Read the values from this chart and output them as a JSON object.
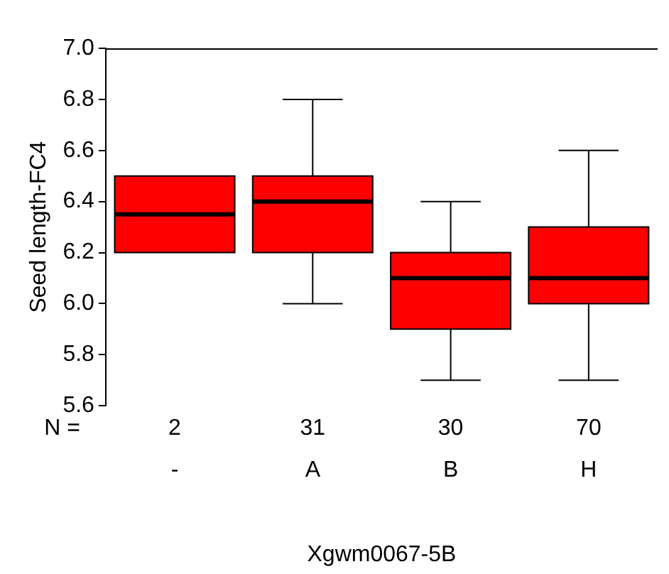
{
  "chart_data": {
    "type": "box",
    "xlabel": "Xgwm0067-5B",
    "ylabel": "Seed length-FC4",
    "categories": [
      "-",
      "A",
      "B",
      "H"
    ],
    "color": "#ff0000",
    "boxes": [
      {
        "low": 6.2,
        "q1": 6.2,
        "median": 6.35,
        "q3": 6.5,
        "high": 6.5
      },
      {
        "low": 6.0,
        "q1": 6.2,
        "median": 6.4,
        "q3": 6.5,
        "high": 6.8
      },
      {
        "low": 5.7,
        "q1": 5.9,
        "median": 6.1,
        "q3": 6.2,
        "high": 6.4
      },
      {
        "low": 5.7,
        "q1": 6.0,
        "median": 6.1,
        "q3": 6.3,
        "high": 6.6
      }
    ],
    "ylim": [
      5.6,
      7.0
    ],
    "yticks": [
      {
        "value": 5.6,
        "label": "5.6"
      },
      {
        "value": 5.8,
        "label": "5.8"
      },
      {
        "value": 6,
        "label": "6.0"
      },
      {
        "value": 6.2,
        "label": "6.2"
      },
      {
        "value": 6.4,
        "label": "6.4"
      },
      {
        "value": 6.6,
        "label": "6.6"
      },
      {
        "value": 6.8,
        "label": "6.8"
      },
      {
        "value": 7,
        "label": "7.0"
      }
    ],
    "grid": false,
    "annotations": [
      "N =",
      "2",
      "31",
      "30",
      "70"
    ]
  }
}
